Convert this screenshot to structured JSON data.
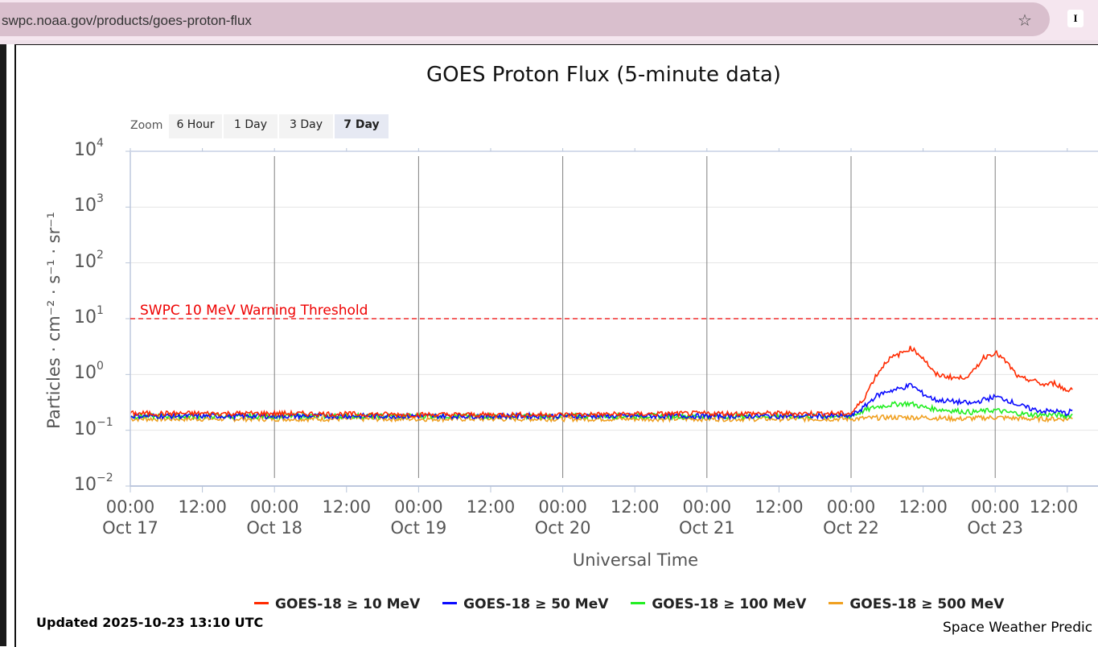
{
  "browser": {
    "url": "swpc.noaa.gov/products/goes-proton-flux",
    "ext_label": "I"
  },
  "zoom": {
    "label": "Zoom",
    "buttons": [
      "6 Hour",
      "1 Day",
      "3 Day",
      "7 Day"
    ],
    "active": "7 Day"
  },
  "footer": {
    "updated": "Updated 2025-10-23 13:10 UTC",
    "credit": "Space Weather Predic"
  },
  "colors": {
    "s10": "#ff2a00",
    "s50": "#0a0aff",
    "s100": "#22ee22",
    "s500": "#f0a020",
    "threshold": "#ee0000"
  },
  "chart_data": {
    "type": "line",
    "title": "GOES Proton Flux (5-minute data)",
    "xlabel": "Universal Time",
    "ylabel": "Particles · cm⁻² · s⁻¹ · sr⁻¹",
    "y_scale": "log",
    "ylim": [
      0.01,
      10000
    ],
    "xlim": [
      "2025-10-17 00:00",
      "2025-10-23 13:00"
    ],
    "y_ticks": [
      {
        "base": "10",
        "exp": "4"
      },
      {
        "base": "10",
        "exp": "3"
      },
      {
        "base": "10",
        "exp": "2"
      },
      {
        "base": "10",
        "exp": "1"
      },
      {
        "base": "10",
        "exp": "0"
      },
      {
        "base": "10",
        "exp": "−1"
      },
      {
        "base": "10",
        "exp": "−2"
      }
    ],
    "x_ticks": [
      {
        "time": "00:00",
        "date": "Oct 17"
      },
      {
        "time": "12:00",
        "date": ""
      },
      {
        "time": "00:00",
        "date": "Oct 18"
      },
      {
        "time": "12:00",
        "date": ""
      },
      {
        "time": "00:00",
        "date": "Oct 19"
      },
      {
        "time": "12:00",
        "date": ""
      },
      {
        "time": "00:00",
        "date": "Oct 20"
      },
      {
        "time": "12:00",
        "date": ""
      },
      {
        "time": "00:00",
        "date": "Oct 21"
      },
      {
        "time": "12:00",
        "date": ""
      },
      {
        "time": "00:00",
        "date": "Oct 22"
      },
      {
        "time": "12:00",
        "date": ""
      },
      {
        "time": "00:00",
        "date": "Oct 23"
      },
      {
        "time": "12:00",
        "date": ""
      }
    ],
    "threshold": {
      "label": "SWPC 10 MeV Warning Threshold",
      "value": 10
    },
    "series": [
      {
        "name": "GOES-18 ≥ 10 MeV",
        "x": [
          "2025-10-17 00:00",
          "2025-10-18 00:00",
          "2025-10-19 00:00",
          "2025-10-20 00:00",
          "2025-10-21 00:00",
          "2025-10-22 00:00",
          "2025-10-22 02:00",
          "2025-10-22 04:00",
          "2025-10-22 06:00",
          "2025-10-22 08:00",
          "2025-10-22 10:00",
          "2025-10-22 12:00",
          "2025-10-22 14:00",
          "2025-10-22 18:00",
          "2025-10-22 20:00",
          "2025-10-22 22:00",
          "2025-10-23 00:00",
          "2025-10-23 02:00",
          "2025-10-23 04:00",
          "2025-10-23 06:00",
          "2025-10-23 08:00",
          "2025-10-23 10:00",
          "2025-10-23 12:00",
          "2025-10-23 13:00"
        ],
        "values": [
          0.2,
          0.2,
          0.19,
          0.19,
          0.2,
          0.2,
          0.35,
          0.9,
          1.8,
          2.3,
          3.0,
          2.0,
          1.0,
          0.85,
          1.0,
          2.0,
          2.5,
          1.6,
          0.85,
          0.8,
          0.65,
          0.7,
          0.5,
          0.6
        ]
      },
      {
        "name": "GOES-18 ≥ 50 MeV",
        "x": [
          "2025-10-17 00:00",
          "2025-10-18 00:00",
          "2025-10-19 00:00",
          "2025-10-20 00:00",
          "2025-10-21 00:00",
          "2025-10-22 00:00",
          "2025-10-22 02:00",
          "2025-10-22 04:00",
          "2025-10-22 06:00",
          "2025-10-22 08:00",
          "2025-10-22 10:00",
          "2025-10-22 12:00",
          "2025-10-22 14:00",
          "2025-10-22 18:00",
          "2025-10-22 20:00",
          "2025-10-22 22:00",
          "2025-10-23 00:00",
          "2025-10-23 02:00",
          "2025-10-23 04:00",
          "2025-10-23 06:00",
          "2025-10-23 08:00",
          "2025-10-23 10:00",
          "2025-10-23 12:00",
          "2025-10-23 13:00"
        ],
        "values": [
          0.18,
          0.18,
          0.18,
          0.18,
          0.18,
          0.18,
          0.25,
          0.4,
          0.5,
          0.55,
          0.65,
          0.45,
          0.35,
          0.32,
          0.3,
          0.35,
          0.4,
          0.35,
          0.28,
          0.24,
          0.22,
          0.22,
          0.2,
          0.24
        ]
      },
      {
        "name": "GOES-18 ≥ 100 MeV",
        "x": [
          "2025-10-17 00:00",
          "2025-10-18 00:00",
          "2025-10-19 00:00",
          "2025-10-20 00:00",
          "2025-10-21 00:00",
          "2025-10-22 00:00",
          "2025-10-22 02:00",
          "2025-10-22 04:00",
          "2025-10-22 06:00",
          "2025-10-22 08:00",
          "2025-10-22 10:00",
          "2025-10-22 12:00",
          "2025-10-22 14:00",
          "2025-10-22 18:00",
          "2025-10-22 20:00",
          "2025-10-22 22:00",
          "2025-10-23 00:00",
          "2025-10-23 02:00",
          "2025-10-23 04:00",
          "2025-10-23 06:00",
          "2025-10-23 08:00",
          "2025-10-23 10:00",
          "2025-10-23 12:00",
          "2025-10-23 13:00"
        ],
        "values": [
          0.18,
          0.18,
          0.18,
          0.18,
          0.18,
          0.18,
          0.22,
          0.26,
          0.28,
          0.3,
          0.3,
          0.26,
          0.24,
          0.22,
          0.21,
          0.22,
          0.23,
          0.21,
          0.2,
          0.19,
          0.19,
          0.19,
          0.18,
          0.19
        ]
      },
      {
        "name": "GOES-18 ≥ 500 MeV",
        "x": [
          "2025-10-17 00:00",
          "2025-10-18 00:00",
          "2025-10-19 00:00",
          "2025-10-20 00:00",
          "2025-10-21 00:00",
          "2025-10-22 00:00",
          "2025-10-22 06:00",
          "2025-10-22 12:00",
          "2025-10-22 18:00",
          "2025-10-23 00:00",
          "2025-10-23 06:00",
          "2025-10-23 12:00",
          "2025-10-23 13:00"
        ],
        "values": [
          0.16,
          0.16,
          0.16,
          0.16,
          0.16,
          0.16,
          0.17,
          0.17,
          0.16,
          0.17,
          0.16,
          0.16,
          0.17
        ]
      }
    ],
    "grid": true,
    "legend_position": "bottom"
  }
}
